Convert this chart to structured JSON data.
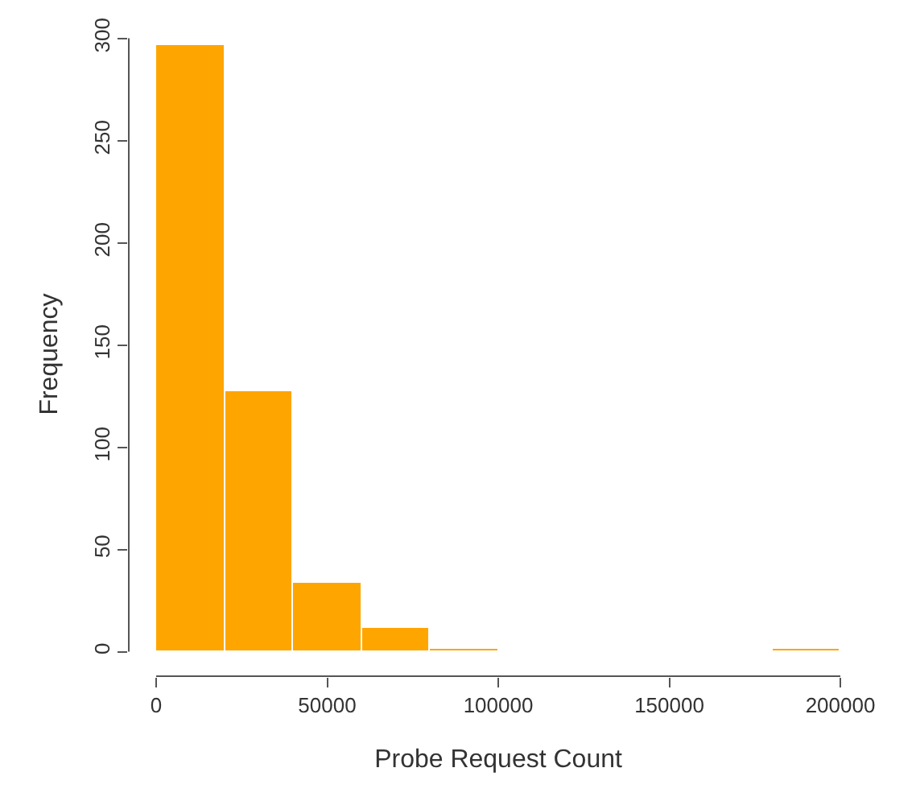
{
  "chart_data": {
    "type": "histogram",
    "xlabel": "Probe Request Count",
    "ylabel": "Frequency",
    "bins": [
      0,
      20000,
      40000,
      60000,
      80000,
      100000,
      120000,
      140000,
      160000,
      180000,
      200000
    ],
    "values": [
      297,
      127,
      34,
      12,
      1,
      0,
      0,
      0,
      0,
      1
    ],
    "color": "#ffa500",
    "xlim": [
      0,
      200000
    ],
    "xticks": [
      0,
      50000,
      100000,
      150000,
      200000
    ],
    "ylim": [
      0,
      300
    ],
    "yticks": [
      0,
      50,
      100,
      150,
      200,
      250,
      300
    ]
  }
}
